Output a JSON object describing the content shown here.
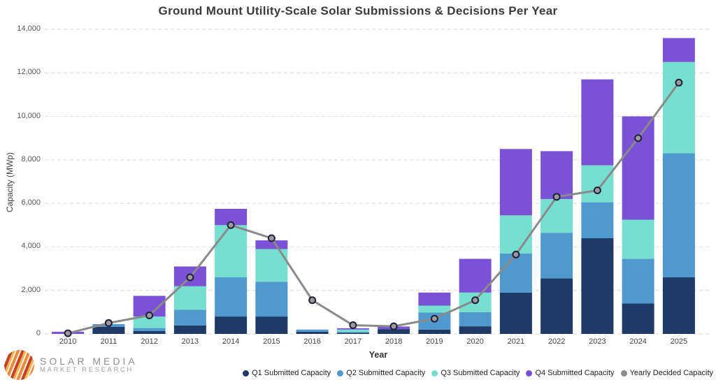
{
  "title": "Ground Mount Utility-Scale Solar Submissions & Decisions Per Year",
  "logo": {
    "line1": "SOLAR MEDIA",
    "line2": "MARKET RESEARCH"
  },
  "colors": {
    "q1": "#1E3A67",
    "q2": "#4F99CE",
    "q3": "#76DFD0",
    "q4": "#7A52D6",
    "decided_line": "#8A8A8A",
    "marker_stroke": "#20203A",
    "gridline": "#D9D9D9"
  },
  "chart_data": {
    "type": "bar",
    "subtype": "stacked-bars-with-line-overlay",
    "title": "Ground Mount Utility-Scale Solar Submissions & Decisions Per Year",
    "xlabel": "Year",
    "ylabel": "Capacity (MWp)",
    "ylim": [
      0,
      14000
    ],
    "y_ticks": [
      "0",
      "2,000",
      "4,000",
      "6,000",
      "8,000",
      "10,000",
      "12,000",
      "14,000"
    ],
    "y_tick_values": [
      0,
      2000,
      4000,
      6000,
      8000,
      10000,
      12000,
      14000
    ],
    "grid": "horizontal-dashed",
    "legend_position": "bottom",
    "categories": [
      "2010",
      "2011",
      "2012",
      "2013",
      "2014",
      "2015",
      "2016",
      "2017",
      "2018",
      "2019",
      "2020",
      "2021",
      "2022",
      "2023",
      "2024",
      "2025"
    ],
    "series": [
      {
        "name": "Q1 Submitted Capacity",
        "type": "bar",
        "color": "#1E3A67",
        "values": [
          0,
          330,
          130,
          390,
          800,
          800,
          100,
          50,
          220,
          200,
          350,
          1900,
          2550,
          4400,
          1400,
          2600
        ]
      },
      {
        "name": "Q2 Submitted Capacity",
        "type": "bar",
        "color": "#4F99CE",
        "values": [
          0,
          120,
          140,
          720,
          1800,
          1600,
          100,
          40,
          0,
          780,
          650,
          1800,
          2100,
          1650,
          2050,
          5700
        ]
      },
      {
        "name": "Q3 Submitted Capacity",
        "type": "bar",
        "color": "#76DFD0",
        "values": [
          0,
          0,
          530,
          1080,
          2400,
          1500,
          0,
          110,
          0,
          320,
          900,
          1750,
          1550,
          1700,
          1800,
          4200
        ]
      },
      {
        "name": "Q4 Submitted Capacity",
        "type": "bar",
        "color": "#7A52D6",
        "values": [
          100,
          0,
          950,
          910,
          750,
          400,
          0,
          60,
          120,
          600,
          1550,
          3050,
          2200,
          3950,
          4750,
          1100
        ]
      },
      {
        "name": "Yearly Decided Capacity",
        "type": "line",
        "color": "#8A8A8A",
        "values": [
          30,
          500,
          850,
          2600,
          5000,
          4400,
          1550,
          400,
          350,
          700,
          1550,
          3650,
          6300,
          6600,
          9000,
          11550
        ]
      }
    ],
    "bar_totals": [
      100,
      450,
      1750,
      3100,
      5750,
      4300,
      200,
      260,
      340,
      1900,
      3450,
      8500,
      8400,
      11700,
      10000,
      13600
    ]
  }
}
